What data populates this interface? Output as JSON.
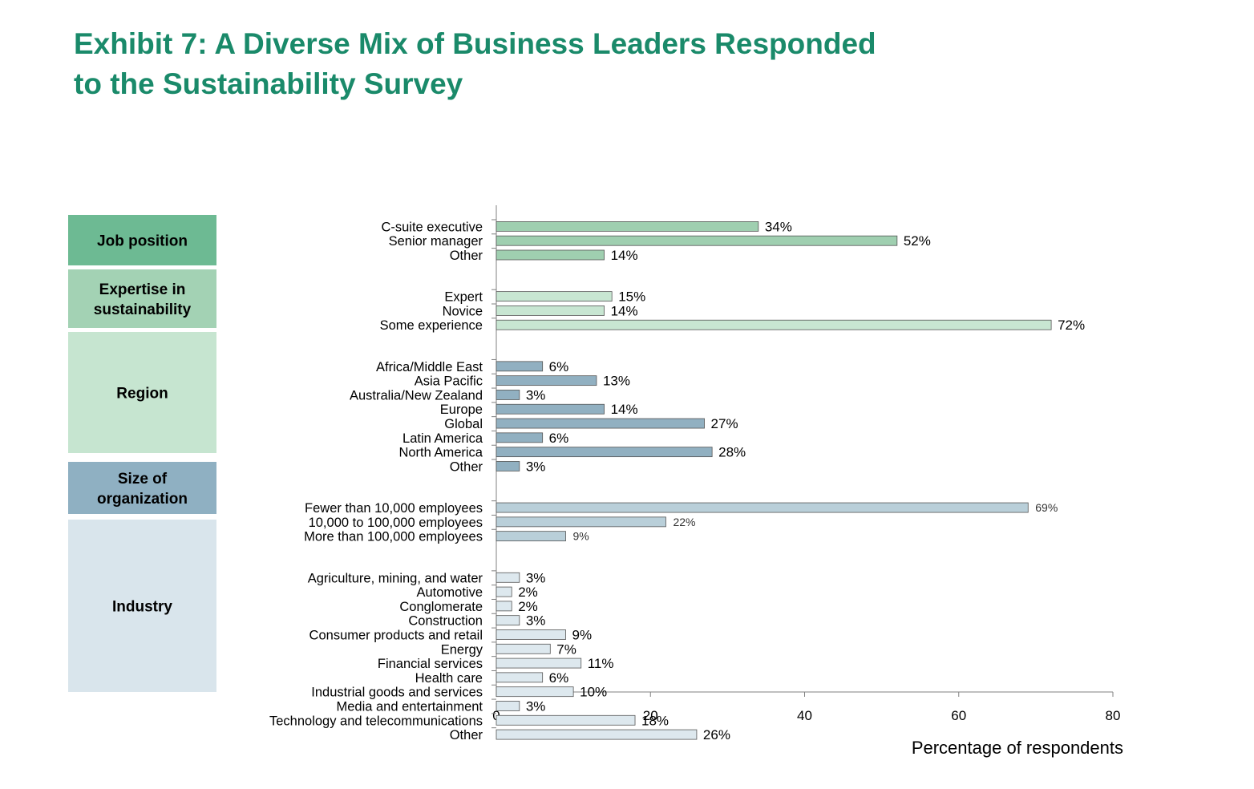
{
  "title": {
    "line1": "Exhibit 7: A Diverse Mix of Business Leaders Responded",
    "line2": "to the Sustainability Survey"
  },
  "colors": {
    "title": "#1a8a6a",
    "panel_job": "#6dba93",
    "panel_expertise": "#a3d2b4",
    "panel_region": "#c6e5d0",
    "panel_size": "#8fb0c2",
    "panel_industry": "#d9e5ec",
    "bar_job": "#9fcfb0",
    "bar_expertise": "#c8e6d2",
    "bar_region": "#91b0c1",
    "bar_size": "#b9cfd9",
    "bar_industry": "#dde8ee",
    "bar_edge": "#555555",
    "axis": "#808080"
  },
  "chart_data": {
    "type": "bar",
    "orientation": "horizontal",
    "xlabel": "Percentage of respondents",
    "xlim": [
      0,
      80
    ],
    "xticks": [
      0,
      20,
      40,
      60,
      80
    ],
    "grid": false,
    "groups": [
      {
        "name": "Job position",
        "name_lines": [
          "Job position"
        ],
        "color_key": "bar_job",
        "panel_color_key": "panel_job",
        "label_size": "normal",
        "items": [
          {
            "label": "C-suite executive",
            "value": 34,
            "display": "34%"
          },
          {
            "label": "Senior manager",
            "value": 52,
            "display": "52%"
          },
          {
            "label": "Other",
            "value": 14,
            "display": "14%"
          }
        ]
      },
      {
        "name": "Expertise in sustainability",
        "name_lines": [
          "Expertise in",
          "sustainability"
        ],
        "color_key": "bar_expertise",
        "panel_color_key": "panel_expertise",
        "label_size": "normal",
        "items": [
          {
            "label": "Expert",
            "value": 15,
            "display": "15%"
          },
          {
            "label": "Novice",
            "value": 14,
            "display": "14%"
          },
          {
            "label": "Some experience",
            "value": 72,
            "display": "72%"
          }
        ]
      },
      {
        "name": "Region",
        "name_lines": [
          "Region"
        ],
        "color_key": "bar_region",
        "panel_color_key": "panel_region",
        "label_size": "normal",
        "items": [
          {
            "label": "Africa/Middle East",
            "value": 6,
            "display": "6%"
          },
          {
            "label": "Asia Pacific",
            "value": 13,
            "display": "13%"
          },
          {
            "label": "Australia/New Zealand",
            "value": 3,
            "display": "3%"
          },
          {
            "label": "Europe",
            "value": 14,
            "display": "14%"
          },
          {
            "label": "Global",
            "value": 27,
            "display": "27%"
          },
          {
            "label": "Latin America",
            "value": 6,
            "display": "6%"
          },
          {
            "label": "North America",
            "value": 28,
            "display": "28%"
          },
          {
            "label": "Other",
            "value": 3,
            "display": "3%"
          }
        ]
      },
      {
        "name": "Size of organization",
        "name_lines": [
          "Size of",
          "organization"
        ],
        "color_key": "bar_size",
        "panel_color_key": "panel_size",
        "label_size": "small",
        "items": [
          {
            "label": "Fewer than 10,000 employees",
            "value": 69,
            "display": "69%"
          },
          {
            "label": "10,000 to 100,000 employees",
            "value": 22,
            "display": "22%"
          },
          {
            "label": "More than 100,000 employees",
            "value": 9,
            "display": "9%"
          }
        ]
      },
      {
        "name": "Industry",
        "name_lines": [
          "Industry"
        ],
        "color_key": "bar_industry",
        "panel_color_key": "panel_industry",
        "label_size": "normal",
        "items": [
          {
            "label": "Agriculture, mining, and water",
            "value": 3,
            "display": "3%"
          },
          {
            "label": "Automotive",
            "value": 2,
            "display": "2%"
          },
          {
            "label": "Conglomerate",
            "value": 2,
            "display": "2%"
          },
          {
            "label": "Construction",
            "value": 3,
            "display": "3%"
          },
          {
            "label": "Consumer products and retail",
            "value": 9,
            "display": "9%"
          },
          {
            "label": "Energy",
            "value": 7,
            "display": "7%"
          },
          {
            "label": "Financial services",
            "value": 11,
            "display": "11%"
          },
          {
            "label": "Health care",
            "value": 6,
            "display": "6%"
          },
          {
            "label": "Industrial goods and services",
            "value": 10,
            "display": "10%"
          },
          {
            "label": "Media and entertainment",
            "value": 3,
            "display": "3%"
          },
          {
            "label": "Technology and telecommunications",
            "value": 18,
            "display": "18%"
          },
          {
            "label": "Other",
            "value": 26,
            "display": "26%"
          }
        ]
      }
    ]
  }
}
